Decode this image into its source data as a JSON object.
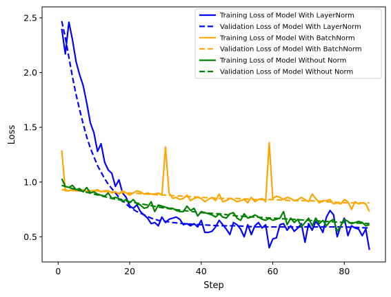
{
  "chart_data": {
    "type": "line",
    "xlabel": "Step",
    "ylabel": "Loss",
    "xlim": [
      -4.5,
      91.5
    ],
    "ylim": [
      0.27,
      2.6
    ],
    "x_ticks": [
      0,
      20,
      40,
      60,
      80
    ],
    "x_tick_labels": [
      "0",
      "20",
      "40",
      "60",
      "80"
    ],
    "y_ticks": [
      0.5,
      1.0,
      1.5,
      2.0,
      2.5
    ],
    "y_tick_labels": [
      "0.5",
      "1.0",
      "1.5",
      "2.0",
      "2.5"
    ],
    "grid": false,
    "legend_position": "top-right",
    "series": [
      {
        "name": "Training Loss of Model With LayerNorm",
        "color": "#0000ff",
        "style": "solid",
        "x": [
          1,
          2,
          3,
          4,
          5,
          6,
          7,
          8,
          9,
          10,
          11,
          12,
          13,
          14,
          15,
          16,
          17,
          18,
          19,
          20,
          21,
          22,
          23,
          24,
          25,
          26,
          27,
          28,
          29,
          30,
          31,
          32,
          33,
          34,
          35,
          36,
          37,
          38,
          39,
          40,
          41,
          42,
          43,
          44,
          45,
          46,
          47,
          48,
          49,
          50,
          51,
          52,
          53,
          54,
          55,
          56,
          57,
          58,
          59,
          60,
          61,
          62,
          63,
          64,
          65,
          66,
          67,
          68,
          69,
          70,
          71,
          72,
          73,
          74,
          75,
          76,
          77,
          78,
          79,
          80,
          81,
          82,
          83,
          84,
          85,
          86,
          87
        ],
        "y": [
          2.4,
          2.17,
          2.46,
          2.3,
          2.1,
          1.98,
          1.88,
          1.72,
          1.54,
          1.45,
          1.28,
          1.35,
          1.18,
          1.11,
          1.08,
          0.96,
          1.02,
          0.9,
          0.86,
          0.78,
          0.76,
          0.79,
          0.73,
          0.7,
          0.67,
          0.62,
          0.63,
          0.6,
          0.68,
          0.63,
          0.66,
          0.67,
          0.68,
          0.66,
          0.61,
          0.62,
          0.6,
          0.62,
          0.59,
          0.65,
          0.54,
          0.54,
          0.55,
          0.59,
          0.65,
          0.61,
          0.57,
          0.52,
          0.63,
          0.61,
          0.57,
          0.5,
          0.61,
          0.52,
          0.6,
          0.63,
          0.58,
          0.61,
          0.4,
          0.48,
          0.49,
          0.61,
          0.62,
          0.56,
          0.6,
          0.55,
          0.58,
          0.62,
          0.45,
          0.62,
          0.56,
          0.64,
          0.6,
          0.54,
          0.68,
          0.74,
          0.7,
          0.5,
          0.6,
          0.67,
          0.51,
          0.6,
          0.58,
          0.57,
          0.51,
          0.57,
          0.38
        ]
      },
      {
        "name": "Validation Loss of Model With LayerNorm",
        "color": "#0000ff",
        "style": "dashed",
        "x": [
          1,
          2,
          3,
          4,
          5,
          6,
          7,
          8,
          9,
          10,
          11,
          12,
          13,
          14,
          15,
          16,
          17,
          18,
          19,
          20,
          22,
          24,
          26,
          28,
          30,
          32,
          35,
          40,
          45,
          50,
          55,
          60,
          65,
          70,
          75,
          80,
          87
        ],
        "y": [
          2.47,
          2.32,
          2.14,
          1.96,
          1.8,
          1.66,
          1.53,
          1.41,
          1.31,
          1.23,
          1.15,
          1.09,
          1.03,
          0.98,
          0.94,
          0.9,
          0.86,
          0.83,
          0.8,
          0.77,
          0.73,
          0.7,
          0.67,
          0.65,
          0.64,
          0.63,
          0.62,
          0.61,
          0.6,
          0.6,
          0.59,
          0.59,
          0.59,
          0.59,
          0.59,
          0.59,
          0.58
        ]
      },
      {
        "name": "Training Loss of Model With BatchNorm",
        "color": "#ffa500",
        "style": "solid",
        "x": [
          1,
          2,
          3,
          4,
          5,
          6,
          7,
          8,
          9,
          10,
          11,
          12,
          13,
          14,
          15,
          16,
          17,
          18,
          19,
          20,
          21,
          22,
          23,
          24,
          25,
          26,
          27,
          28,
          29,
          30,
          31,
          32,
          33,
          34,
          35,
          36,
          37,
          38,
          39,
          40,
          41,
          42,
          43,
          44,
          45,
          46,
          47,
          48,
          49,
          50,
          51,
          52,
          53,
          54,
          55,
          56,
          57,
          58,
          59,
          60,
          61,
          62,
          63,
          64,
          65,
          66,
          67,
          68,
          69,
          70,
          71,
          72,
          73,
          74,
          75,
          76,
          77,
          78,
          79,
          80,
          81,
          82,
          83,
          84,
          85,
          86,
          87
        ],
        "y": [
          1.29,
          0.92,
          0.92,
          0.93,
          0.92,
          0.92,
          0.93,
          0.91,
          0.92,
          0.92,
          0.93,
          0.91,
          0.92,
          0.92,
          0.9,
          0.91,
          0.89,
          0.92,
          0.9,
          0.88,
          0.9,
          0.92,
          0.91,
          0.89,
          0.9,
          0.89,
          0.89,
          0.9,
          0.88,
          1.32,
          0.9,
          0.85,
          0.86,
          0.84,
          0.85,
          0.88,
          0.83,
          0.85,
          0.86,
          0.85,
          0.82,
          0.84,
          0.86,
          0.83,
          0.89,
          0.82,
          0.83,
          0.85,
          0.84,
          0.82,
          0.83,
          0.84,
          0.81,
          0.86,
          0.82,
          0.84,
          0.85,
          0.82,
          1.36,
          0.85,
          0.87,
          0.86,
          0.84,
          0.86,
          0.85,
          0.83,
          0.84,
          0.86,
          0.84,
          0.82,
          0.89,
          0.85,
          0.81,
          0.83,
          0.83,
          0.84,
          0.8,
          0.81,
          0.8,
          0.84,
          0.82,
          0.75,
          0.82,
          0.8,
          0.81,
          0.8,
          0.73
        ]
      },
      {
        "name": "Validation Loss of Model With BatchNorm",
        "color": "#ffa500",
        "style": "dashed",
        "x": [
          1,
          5,
          10,
          15,
          20,
          25,
          30,
          35,
          40,
          45,
          50,
          55,
          60,
          65,
          70,
          75,
          80,
          87
        ],
        "y": [
          0.93,
          0.92,
          0.92,
          0.91,
          0.9,
          0.89,
          0.88,
          0.87,
          0.86,
          0.85,
          0.85,
          0.84,
          0.84,
          0.83,
          0.83,
          0.82,
          0.81,
          0.81
        ]
      },
      {
        "name": "Training Loss of Model Without Norm",
        "color": "#008000",
        "style": "solid",
        "x": [
          1,
          2,
          3,
          4,
          5,
          6,
          7,
          8,
          9,
          10,
          11,
          12,
          13,
          14,
          15,
          16,
          17,
          18,
          19,
          20,
          21,
          22,
          23,
          24,
          25,
          26,
          27,
          28,
          29,
          30,
          31,
          32,
          33,
          34,
          35,
          36,
          37,
          38,
          39,
          40,
          41,
          42,
          43,
          44,
          45,
          46,
          47,
          48,
          49,
          50,
          51,
          52,
          53,
          54,
          55,
          56,
          57,
          58,
          59,
          60,
          61,
          62,
          63,
          64,
          65,
          66,
          67,
          68,
          69,
          70,
          71,
          72,
          73,
          74,
          75,
          76,
          77,
          78,
          79,
          80,
          81,
          82,
          83,
          84,
          85,
          86,
          87
        ],
        "y": [
          1.03,
          0.96,
          0.95,
          0.97,
          0.93,
          0.94,
          0.91,
          0.95,
          0.9,
          0.91,
          0.89,
          0.88,
          0.87,
          0.9,
          0.85,
          0.86,
          0.85,
          0.82,
          0.84,
          0.81,
          0.84,
          0.8,
          0.79,
          0.76,
          0.77,
          0.82,
          0.73,
          0.79,
          0.78,
          0.77,
          0.76,
          0.76,
          0.74,
          0.73,
          0.73,
          0.78,
          0.74,
          0.76,
          0.69,
          0.73,
          0.72,
          0.71,
          0.7,
          0.68,
          0.71,
          0.68,
          0.67,
          0.71,
          0.72,
          0.67,
          0.65,
          0.71,
          0.67,
          0.68,
          0.7,
          0.68,
          0.66,
          0.65,
          0.67,
          0.65,
          0.66,
          0.67,
          0.73,
          0.61,
          0.67,
          0.63,
          0.66,
          0.59,
          0.63,
          0.67,
          0.6,
          0.67,
          0.62,
          0.65,
          0.6,
          0.64,
          0.66,
          0.55,
          0.6,
          0.66,
          0.64,
          0.62,
          0.63,
          0.64,
          0.63,
          0.6,
          0.61
        ]
      },
      {
        "name": "Validation Loss of Model Without Norm",
        "color": "#008000",
        "style": "dashed",
        "x": [
          1,
          5,
          10,
          15,
          20,
          25,
          30,
          35,
          40,
          45,
          50,
          55,
          60,
          65,
          70,
          75,
          80,
          87
        ],
        "y": [
          0.97,
          0.93,
          0.89,
          0.85,
          0.82,
          0.79,
          0.76,
          0.74,
          0.72,
          0.71,
          0.69,
          0.68,
          0.67,
          0.66,
          0.65,
          0.64,
          0.63,
          0.62
        ]
      }
    ]
  }
}
